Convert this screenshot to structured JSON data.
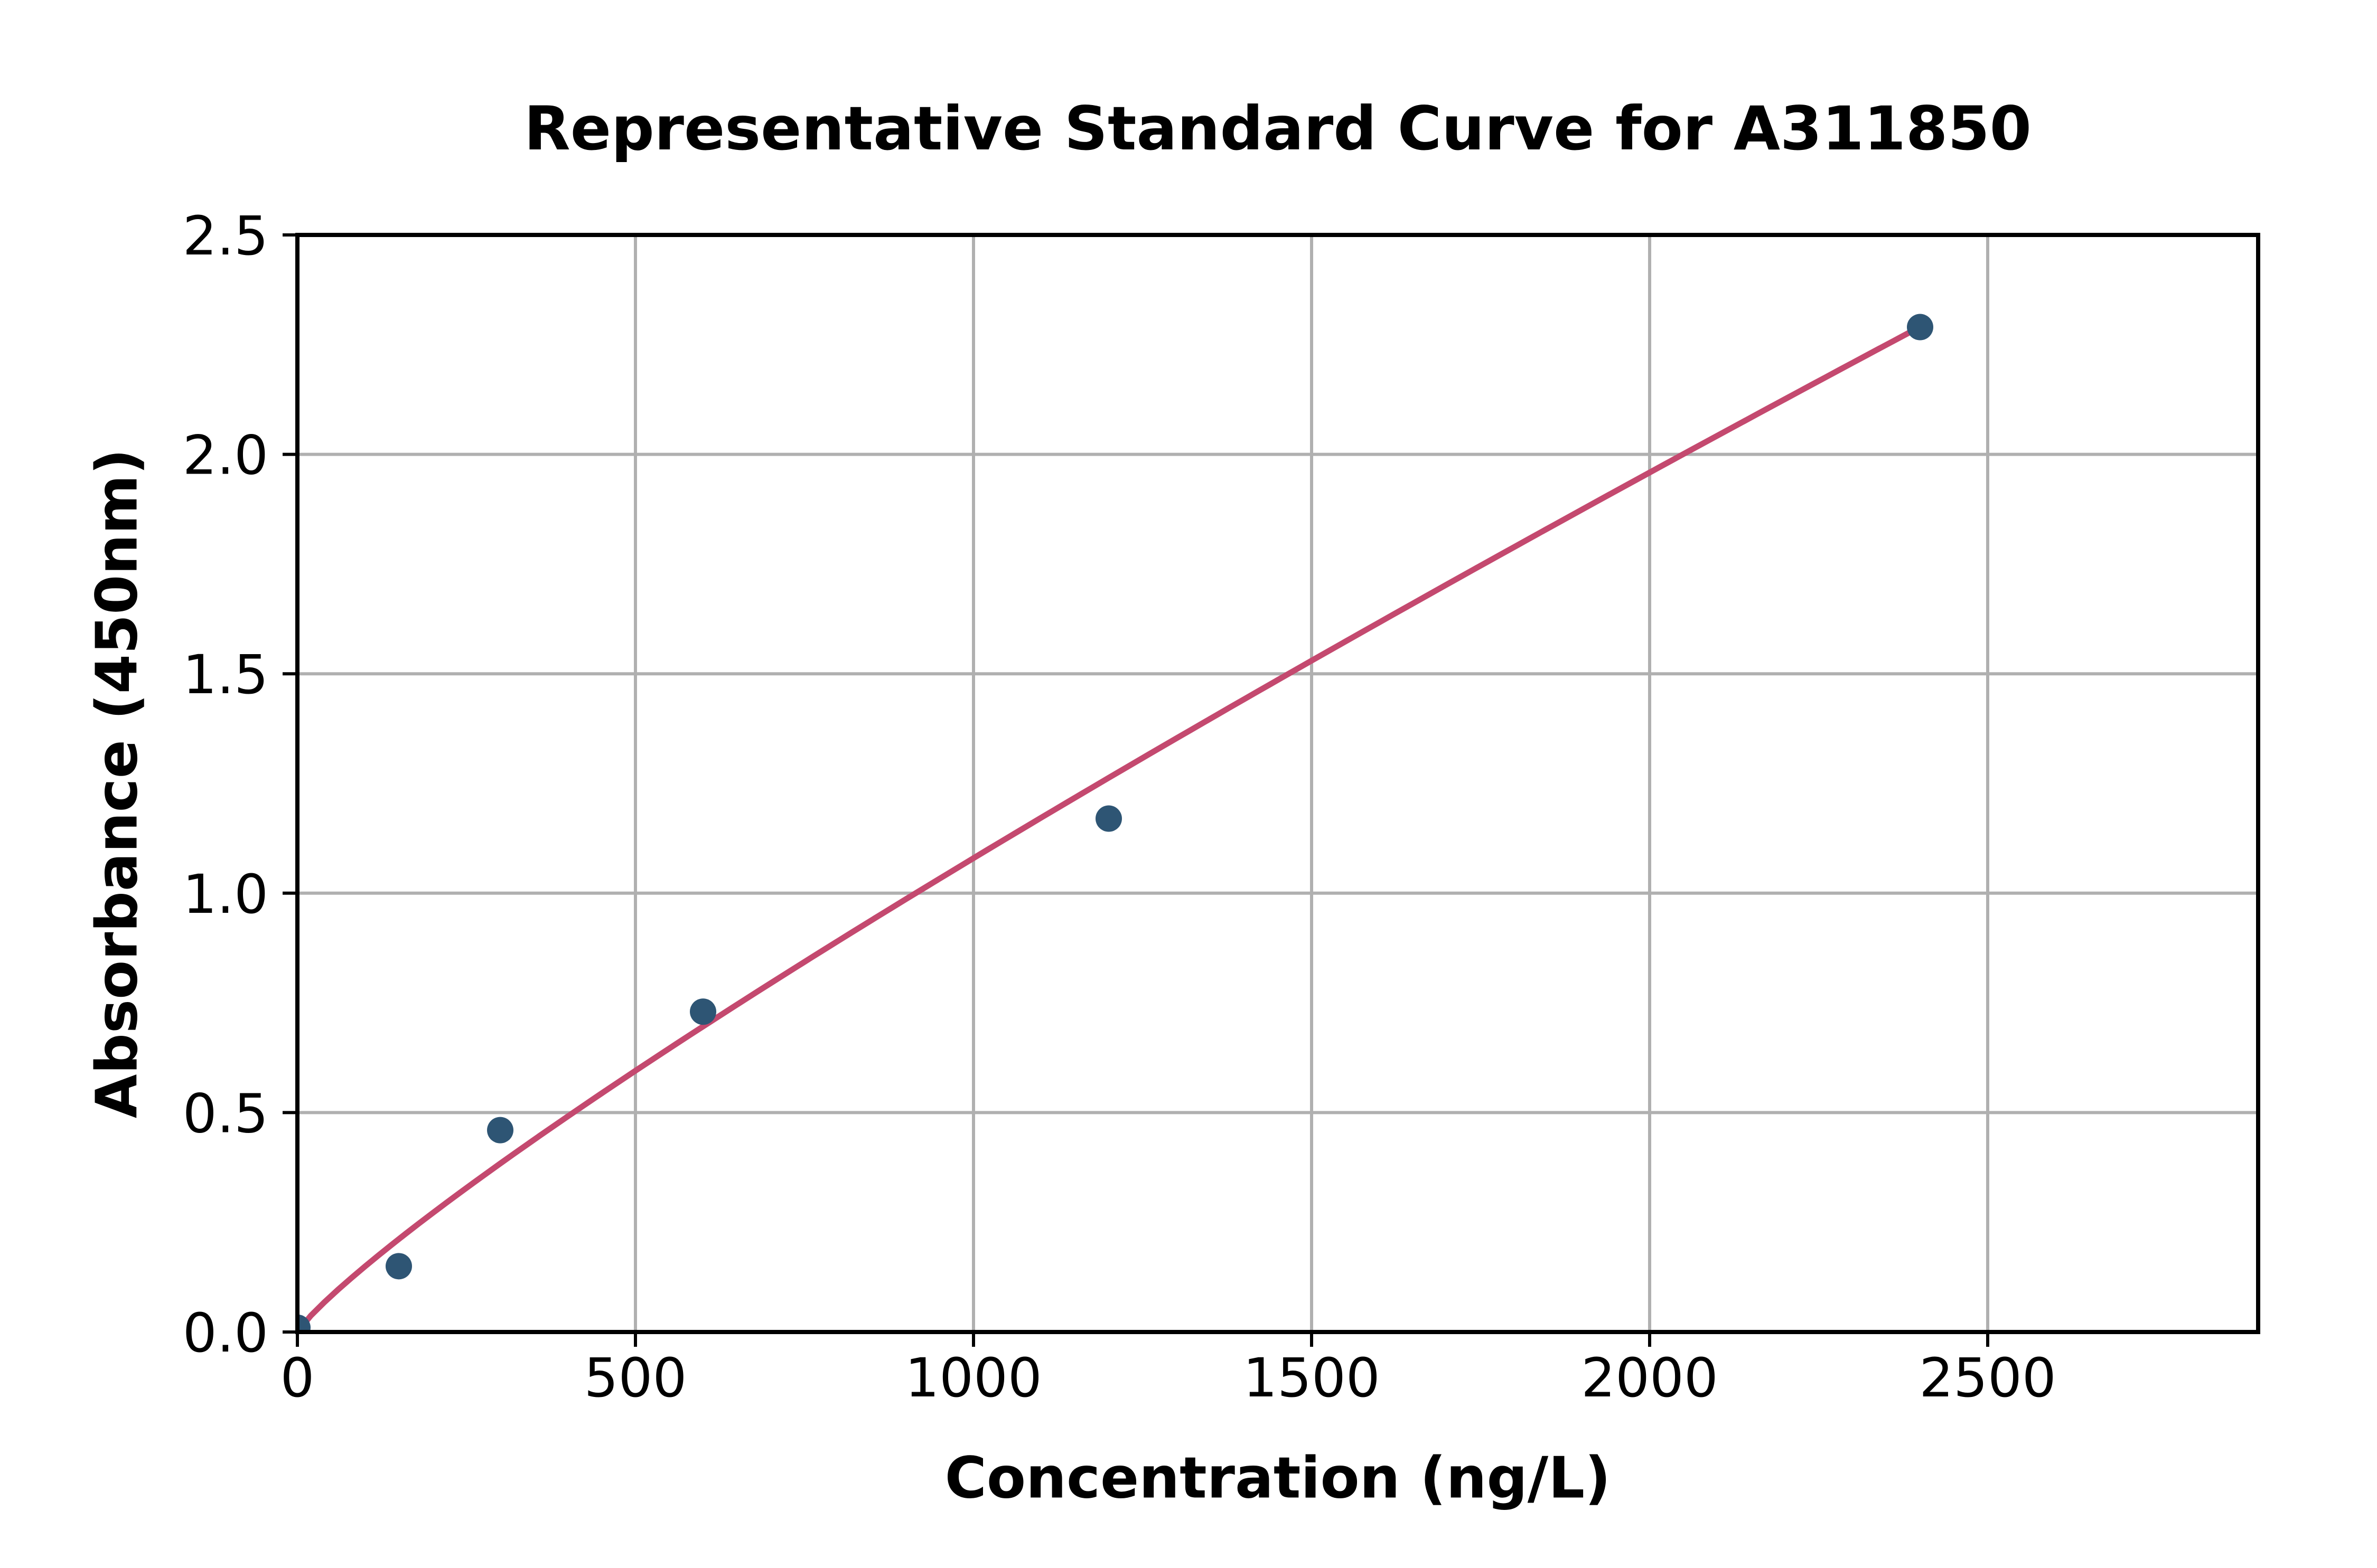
{
  "page": {
    "background": "#ffffff"
  },
  "chart_data": {
    "type": "scatter",
    "title": "Representative Standard Curve for A311850",
    "xlabel": "Concentration (ng/L)",
    "ylabel": "Absorbance (450nm)",
    "xlim": [
      0,
      2900
    ],
    "ylim": [
      0,
      2.5
    ],
    "xticks": [
      0,
      500,
      1000,
      1500,
      2000,
      2500
    ],
    "xtick_labels": [
      "0",
      "500",
      "1000",
      "1500",
      "2000",
      "2500"
    ],
    "yticks": [
      0,
      0.5,
      1.0,
      1.5,
      2.0,
      2.5
    ],
    "ytick_labels": [
      "0.0",
      "0.5",
      "1.0",
      "1.5",
      "2.0",
      "2.5"
    ],
    "grid": true,
    "legend": false,
    "points": {
      "x": [
        0,
        150,
        300,
        600,
        1200,
        2400
      ],
      "y": [
        0.01,
        0.15,
        0.46,
        0.73,
        1.17,
        2.29
      ]
    },
    "trendline": {
      "model": "power",
      "a": 0.00286,
      "b": 0.859,
      "x_start": 0,
      "x_end": 2400
    },
    "colors": {
      "point": "#2e5574",
      "curve": "#c4496f",
      "grid": "#b0b0b0",
      "spine": "#000000",
      "text": "#000000",
      "background": "#ffffff"
    }
  }
}
